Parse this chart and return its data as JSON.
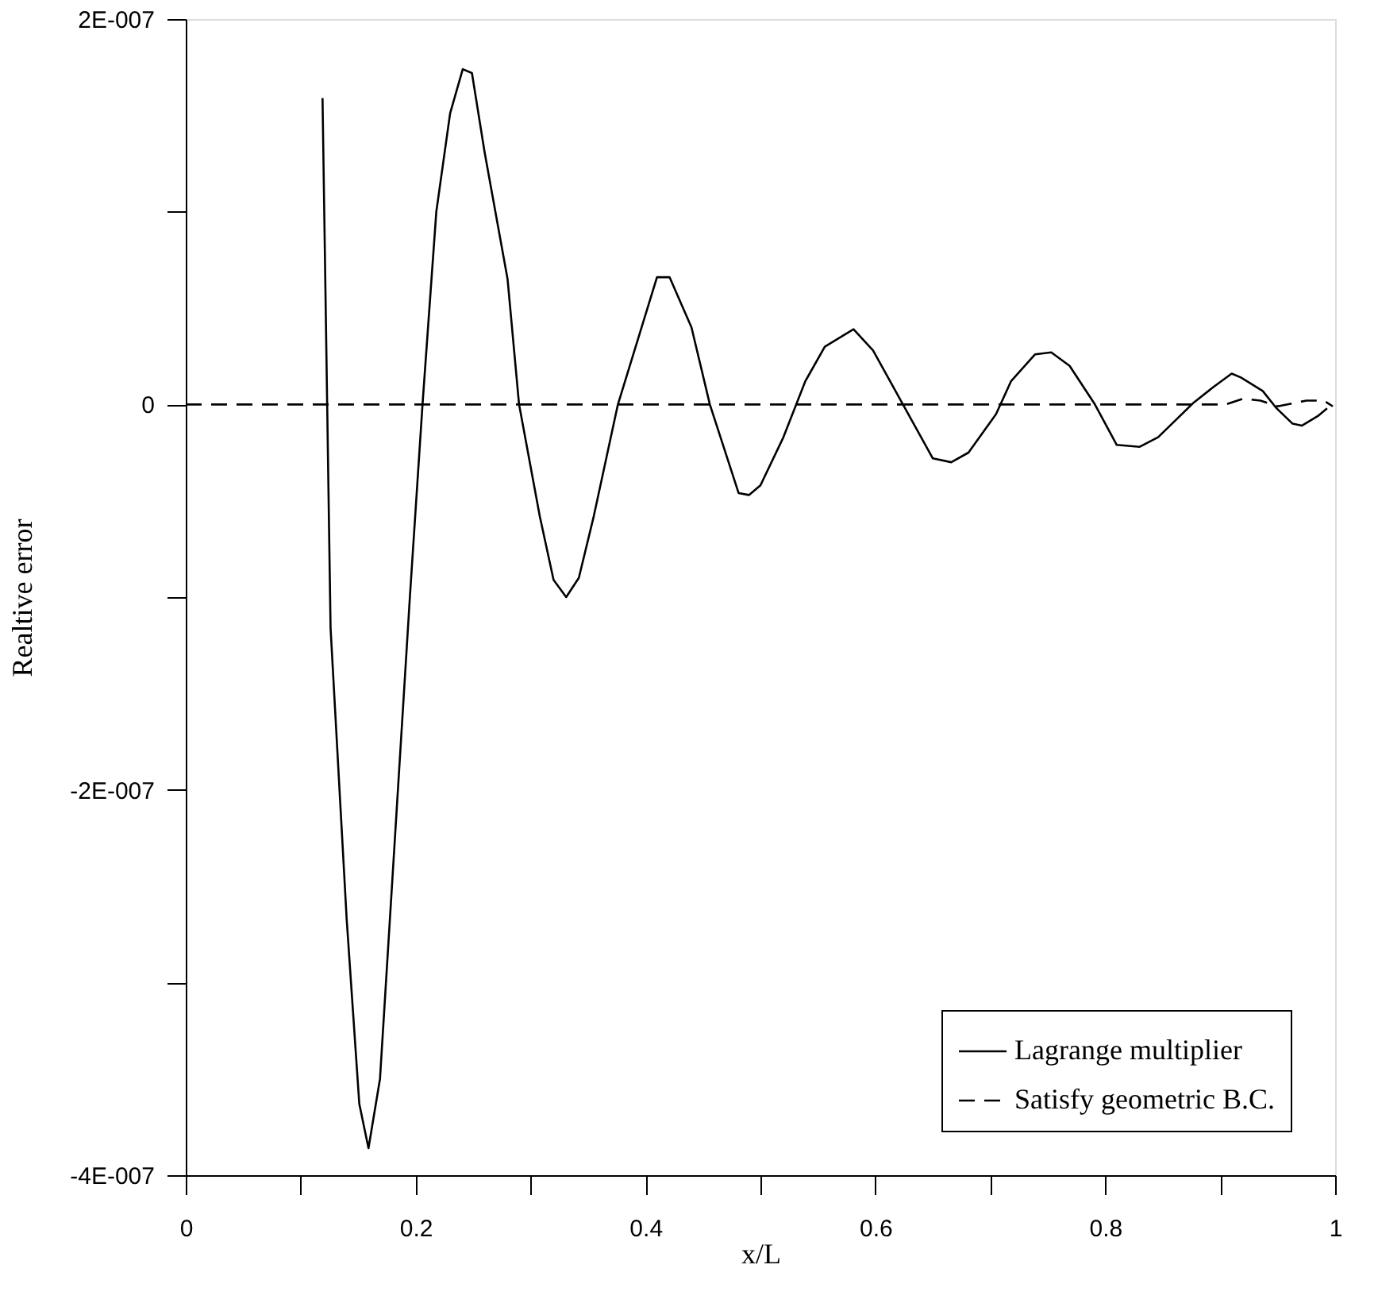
{
  "chart_data": {
    "type": "line",
    "xlabel": "x/L",
    "ylabel": "Realtive error",
    "xlim": [
      0,
      1
    ],
    "ylim": [
      -4e-07,
      2e-07
    ],
    "xticks": [
      0,
      {
        "value": 0.1,
        "label": null
      },
      0.2,
      {
        "value": 0.3,
        "label": null
      },
      0.4,
      {
        "value": 0.5,
        "label": null
      },
      0.6,
      {
        "value": 0.7,
        "label": null
      },
      0.8,
      {
        "value": 0.9,
        "label": null
      },
      1
    ],
    "yticks": [
      {
        "value": -4e-07,
        "label": "-4E-007"
      },
      {
        "value": -3e-07,
        "label": null
      },
      {
        "value": -2e-07,
        "label": "-2E-007"
      },
      {
        "value": -1e-07,
        "label": null
      },
      0,
      {
        "value": 1e-07,
        "label": null
      },
      {
        "value": 2e-07,
        "label": "2E-007"
      }
    ],
    "grid": false,
    "legend": "bottom right",
    "marker": "none",
    "series": [
      {
        "name": "Lagrange multiplier",
        "color": "#000000",
        "line_style": "solid",
        "x": [
          0.119,
          0.126,
          0.14,
          0.151,
          0.159,
          0.169,
          0.195,
          0.206,
          0.218,
          0.23,
          0.241,
          0.249,
          0.26,
          0.28,
          0.29,
          0.308,
          0.32,
          0.331,
          0.342,
          0.355,
          0.376,
          0.41,
          0.421,
          0.44,
          0.456,
          0.481,
          0.49,
          0.5,
          0.52,
          0.539,
          0.556,
          0.581,
          0.598,
          0.624,
          0.65,
          0.666,
          0.681,
          0.705,
          0.718,
          0.739,
          0.753,
          0.769,
          0.791,
          0.81,
          0.83,
          0.846,
          0.877,
          0.894,
          0.91,
          0.918,
          0.937,
          0.949,
          0.963,
          0.971,
          0.985,
          0.993
        ],
        "values": [
          1.59e-07,
          -1.16e-07,
          -2.67e-07,
          -3.63e-07,
          -3.86e-07,
          -3.5e-07,
          -1e-07,
          0.0,
          1e-07,
          1.51e-07,
          1.74e-07,
          1.72e-07,
          1.31e-07,
          6.5e-08,
          0.0,
          -5.8e-08,
          -9.1e-08,
          -1e-07,
          -9e-08,
          -5.8e-08,
          0.0,
          6.6e-08,
          6.6e-08,
          4e-08,
          0.0,
          -4.6e-08,
          -4.7e-08,
          -4.2e-08,
          -1.7e-08,
          1.2e-08,
          3e-08,
          3.9e-08,
          2.8e-08,
          0.0,
          -2.8e-08,
          -3e-08,
          -2.5e-08,
          -5e-09,
          1.2e-08,
          2.6e-08,
          2.7e-08,
          2e-08,
          0.0,
          -2.1e-08,
          -2.2e-08,
          -1.7e-08,
          1e-09,
          9e-09,
          1.6e-08,
          1.4e-08,
          7e-09,
          -2e-09,
          -1e-08,
          -1.1e-08,
          -6e-09,
          -2e-09
        ]
      },
      {
        "name": "Satisfy geometric B.C.",
        "color": "#000000",
        "line_style": "dashed",
        "x": [
          0,
          0.88,
          0.905,
          0.92,
          0.935,
          0.95,
          0.975,
          0.99,
          0.998
        ],
        "values": [
          0.0,
          0.0,
          0.0,
          3e-09,
          2e-09,
          -1e-09,
          2e-09,
          2e-09,
          -1e-09
        ]
      }
    ]
  }
}
